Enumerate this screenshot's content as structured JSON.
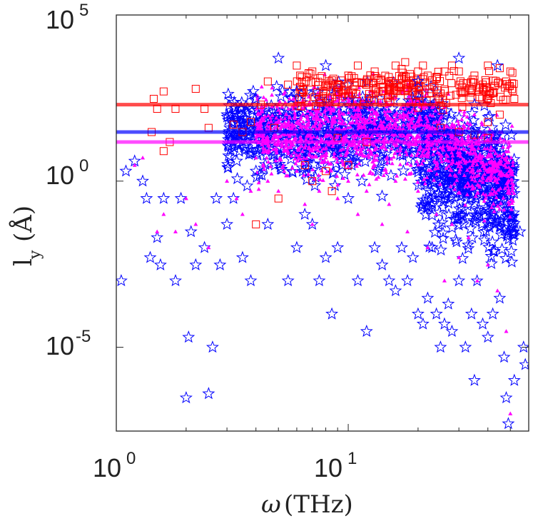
{
  "chart_data": {
    "type": "scatter",
    "title": "",
    "xlabel_symbol": "ω",
    "xlabel_unit": "(THz)",
    "ylabel_main": "l",
    "ylabel_sub": "y",
    "ylabel_unit": "(Å)",
    "xscale": "log",
    "yscale": "log",
    "xlim": [
      1,
      60
    ],
    "ylim": [
      3e-08,
      100000
    ],
    "x_ticks": [
      {
        "value": 1,
        "base": "10",
        "exp": "0"
      },
      {
        "value": 10,
        "base": "10",
        "exp": "1"
      }
    ],
    "y_ticks": [
      {
        "value": 100000,
        "base": "10",
        "exp": "5"
      },
      {
        "value": 1,
        "base": "10",
        "exp": "0"
      },
      {
        "value": 1e-05,
        "base": "10",
        "exp": "-5"
      }
    ],
    "series": [
      {
        "name": "squares",
        "marker": "square",
        "color": "#ff0000",
        "mean_line": 200,
        "points": [
          [
            1.45,
            300
          ],
          [
            1.5,
            150
          ],
          [
            1.6,
            500
          ],
          [
            1.42,
            30
          ],
          [
            1.8,
            150
          ],
          [
            2.2,
            600
          ],
          [
            2.4,
            150
          ],
          [
            2.5,
            40
          ],
          [
            1.7,
            15
          ],
          [
            1.6,
            8
          ],
          [
            3.2,
            50
          ],
          [
            3.5,
            30
          ],
          [
            3.8,
            60
          ],
          [
            4.5,
            1000
          ],
          [
            4.2,
            200
          ],
          [
            5.5,
            800
          ],
          [
            6.0,
            3000
          ],
          [
            6.2,
            1500
          ],
          [
            4.8,
            40
          ],
          [
            7.0,
            2000
          ],
          [
            7.5,
            300
          ],
          [
            8.0,
            500
          ],
          [
            9.0,
            800
          ],
          [
            10.0,
            1500
          ],
          [
            11.0,
            3000
          ],
          [
            12.0,
            800
          ],
          [
            13.0,
            2000
          ],
          [
            14.0,
            500
          ],
          [
            15.0,
            1000
          ],
          [
            16.0,
            3000
          ],
          [
            17.0,
            1200
          ],
          [
            19.0,
            500
          ],
          [
            20.0,
            2000
          ],
          [
            21.0,
            3000
          ],
          [
            22.0,
            1500
          ],
          [
            23.0,
            800
          ],
          [
            24.0,
            1200
          ],
          [
            26.0,
            2000
          ],
          [
            28.0,
            3000
          ],
          [
            30.0,
            2000
          ],
          [
            32.0,
            500
          ],
          [
            35.0,
            1500
          ],
          [
            38.0,
            800
          ],
          [
            40.0,
            3000
          ],
          [
            42.0,
            500
          ],
          [
            45.0,
            2500
          ],
          [
            48.0,
            1000
          ],
          [
            50.0,
            2000
          ],
          [
            52.0,
            300
          ],
          [
            25.0,
            40
          ],
          [
            30.0,
            30
          ],
          [
            35.0,
            25
          ],
          [
            40.0,
            20
          ],
          [
            7.0,
            1
          ],
          [
            6.5,
            3
          ],
          [
            4.0,
            0.05
          ],
          [
            8.0,
            2
          ],
          [
            8.5,
            0.5
          ],
          [
            10.0,
            3
          ],
          [
            9.0,
            20
          ],
          [
            12.0,
            15
          ],
          [
            5.0,
            0.3
          ],
          [
            45.0,
            100
          ],
          [
            40.0,
            60
          ]
        ]
      },
      {
        "name": "stars",
        "marker": "star",
        "color": "#0000ff",
        "mean_line": 30,
        "points": [
          [
            1.05,
            0.001
          ],
          [
            1.1,
            2
          ],
          [
            1.2,
            4
          ],
          [
            1.3,
            1
          ],
          [
            1.35,
            0.3
          ],
          [
            1.4,
            0.005
          ],
          [
            1.5,
            0.02
          ],
          [
            1.55,
            0.003
          ],
          [
            1.6,
            0.3
          ],
          [
            1.8,
            0.001
          ],
          [
            1.9,
            0.3
          ],
          [
            2.0,
            3e-07
          ],
          [
            2.05,
            2e-05
          ],
          [
            2.1,
            0.03
          ],
          [
            2.2,
            0.003
          ],
          [
            2.4,
            0.01
          ],
          [
            2.5,
            4e-07
          ],
          [
            2.6,
            1e-05
          ],
          [
            2.7,
            0.3
          ],
          [
            2.8,
            0.003
          ],
          [
            3.0,
            0.05
          ],
          [
            3.2,
            0.3
          ],
          [
            3.5,
            0.005
          ],
          [
            3.8,
            0.001
          ],
          [
            4.0,
            2
          ],
          [
            4.5,
            0.05
          ],
          [
            5.0,
            5000
          ],
          [
            5.5,
            0.001
          ],
          [
            6.0,
            0.01
          ],
          [
            6.5,
            0.1
          ],
          [
            7.0,
            0.05
          ],
          [
            7.5,
            0.001
          ],
          [
            8.0,
            0.005
          ],
          [
            8.5,
            0.0001
          ],
          [
            9.0,
            0.01
          ],
          [
            10.0,
            0.3
          ],
          [
            11.0,
            0.001
          ],
          [
            12.0,
            3e-05
          ],
          [
            13.0,
            0.01
          ],
          [
            14.0,
            0.003
          ],
          [
            15.0,
            0.001
          ],
          [
            16.0,
            0.0005
          ],
          [
            17.0,
            0.01
          ],
          [
            18.0,
            0.001
          ],
          [
            19.0,
            0.005
          ],
          [
            20.0,
            0.0001
          ],
          [
            21.0,
            5e-05
          ],
          [
            22.0,
            0.0003
          ],
          [
            23.0,
            0.01
          ],
          [
            24.0,
            0.0001
          ],
          [
            25.0,
            1e-05
          ],
          [
            26.0,
            5e-05
          ],
          [
            27.0,
            0.0002
          ],
          [
            28.0,
            3e-05
          ],
          [
            30.0,
            0.001
          ],
          [
            32.0,
            1e-05
          ],
          [
            34.0,
            0.0001
          ],
          [
            35.0,
            1e-06
          ],
          [
            38.0,
            5e-05
          ],
          [
            40.0,
            2e-05
          ],
          [
            42.0,
            0.0001
          ],
          [
            45.0,
            0.0003
          ],
          [
            47.0,
            5e-06
          ],
          [
            48.0,
            3e-07
          ],
          [
            49.0,
            5e-08
          ],
          [
            50.0,
            2e-08
          ],
          [
            52.0,
            1e-06
          ],
          [
            55.0,
            0.03
          ],
          [
            57.0,
            1e-05
          ],
          [
            58.0,
            3e-06
          ],
          [
            8.0,
            3000
          ],
          [
            6.0,
            500
          ],
          [
            30.0,
            5000
          ],
          [
            20.0,
            1000
          ],
          [
            44.0,
            3000
          ],
          [
            12.0,
            200
          ],
          [
            3.0,
            100
          ],
          [
            4.0,
            300
          ],
          [
            25.0,
            100
          ],
          [
            35.0,
            200
          ]
        ]
      },
      {
        "name": "triangles",
        "marker": "triangle",
        "color": "#ff00ff",
        "mean_line": 15,
        "points": [
          [
            1.2,
            3
          ],
          [
            1.3,
            5
          ],
          [
            1.5,
            0.03
          ],
          [
            1.6,
            0.1
          ],
          [
            1.8,
            0.03
          ],
          [
            2.0,
            0.3
          ],
          [
            2.2,
            0.05
          ],
          [
            2.5,
            0.01
          ],
          [
            3.0,
            1
          ],
          [
            3.3,
            0.3
          ],
          [
            3.5,
            0.1
          ],
          [
            3.8,
            0.5
          ],
          [
            4.0,
            5
          ],
          [
            4.5,
            1
          ],
          [
            5.0,
            0.5
          ],
          [
            5.5,
            10
          ],
          [
            6.0,
            2
          ],
          [
            6.5,
            0.2
          ],
          [
            7.0,
            0.05
          ],
          [
            7.5,
            0.5
          ],
          [
            8.0,
            5
          ],
          [
            9.0,
            0.3
          ],
          [
            10.0,
            1
          ],
          [
            11.0,
            0.1
          ],
          [
            12.0,
            0.5
          ],
          [
            13.0,
            3
          ],
          [
            14.0,
            0.05
          ],
          [
            15.0,
            0.2
          ],
          [
            16.0,
            1
          ],
          [
            18.0,
            0.03
          ],
          [
            20.0,
            0.5
          ],
          [
            22.0,
            0.01
          ],
          [
            24.0,
            0.1
          ],
          [
            26.0,
            0.001
          ],
          [
            28.0,
            0.05
          ],
          [
            30.0,
            0.005
          ],
          [
            33.0,
            0.02
          ],
          [
            36.0,
            0.001
          ],
          [
            40.0,
            0.003
          ],
          [
            44.0,
            0.0005
          ],
          [
            48.0,
            3e-05
          ],
          [
            50.0,
            1e-07
          ],
          [
            5.0,
            200
          ],
          [
            7.0,
            100
          ],
          [
            10.0,
            300
          ],
          [
            15.0,
            50
          ],
          [
            20.0,
            200
          ],
          [
            25.0,
            80
          ],
          [
            35.0,
            100
          ],
          [
            45.0,
            30
          ]
        ]
      }
    ]
  }
}
